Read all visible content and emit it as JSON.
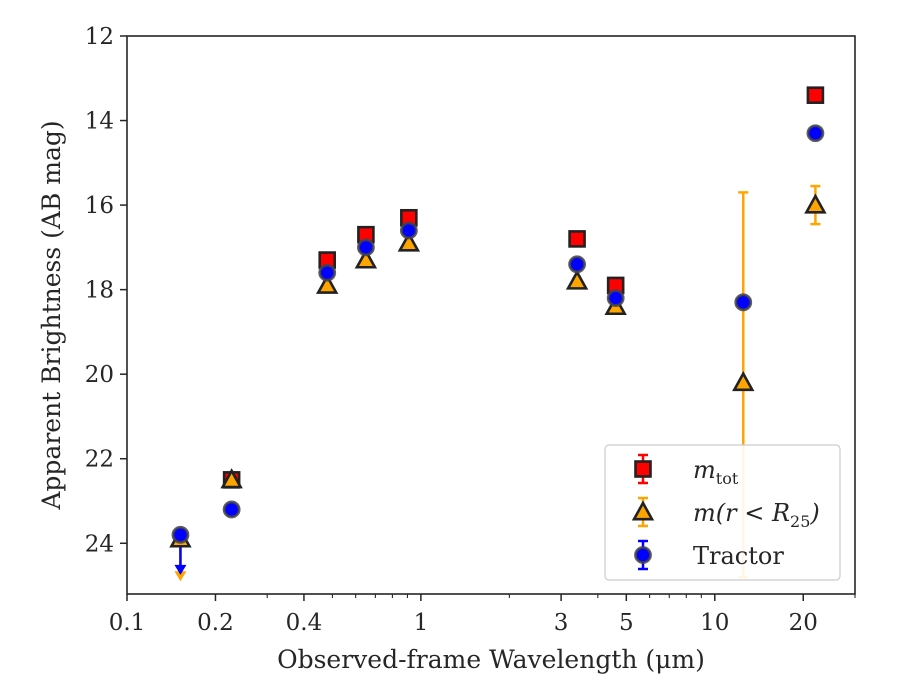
{
  "chart_data": {
    "type": "scatter",
    "xlabel": "Observed-frame Wavelength (μm)",
    "ylabel": "Apparent Brightness (AB mag)",
    "x_scale": "log",
    "xlim": [
      0.1,
      30
    ],
    "ylim": [
      25.2,
      12
    ],
    "y_inverted": true,
    "grid": false,
    "legend_position": "lower-right",
    "x_ticks": [
      {
        "value": 0.1,
        "label": "0.1"
      },
      {
        "value": 0.2,
        "label": "0.2"
      },
      {
        "value": 0.4,
        "label": "0.4"
      },
      {
        "value": 1,
        "label": "1"
      },
      {
        "value": 3,
        "label": "3"
      },
      {
        "value": 5,
        "label": "5"
      },
      {
        "value": 10,
        "label": "10"
      },
      {
        "value": 20,
        "label": "20"
      }
    ],
    "y_ticks": [
      {
        "value": 12,
        "label": "12"
      },
      {
        "value": 14,
        "label": "14"
      },
      {
        "value": 16,
        "label": "16"
      },
      {
        "value": 18,
        "label": "18"
      },
      {
        "value": 20,
        "label": "20"
      },
      {
        "value": 22,
        "label": "22"
      },
      {
        "value": 24,
        "label": "24"
      }
    ],
    "series": [
      {
        "name": "m_tot",
        "legend_main": "m",
        "legend_sub": "tot",
        "marker": "square",
        "color": "#ff0000",
        "edge": "#222222",
        "points": [
          {
            "x": 0.227,
            "y": 22.5,
            "err": 0.1
          },
          {
            "x": 0.48,
            "y": 17.3,
            "err": 0.05
          },
          {
            "x": 0.65,
            "y": 16.7,
            "err": 0.05
          },
          {
            "x": 0.91,
            "y": 16.3,
            "err": 0.05
          },
          {
            "x": 3.4,
            "y": 16.8,
            "err": 0.05
          },
          {
            "x": 4.6,
            "y": 17.9,
            "err": 0.05
          },
          {
            "x": 22,
            "y": 13.4,
            "err": 0.05
          }
        ]
      },
      {
        "name": "m(r<R25)",
        "legend_main": "m(r < R",
        "legend_sub": "25",
        "legend_close": ")",
        "marker": "triangle",
        "color": "#ffa500",
        "edge": "#222222",
        "points": [
          {
            "x": 0.152,
            "y": 23.9,
            "upper_limit": true,
            "arrow_to": 24.85
          },
          {
            "x": 0.227,
            "y": 22.5,
            "err": 0.1
          },
          {
            "x": 0.48,
            "y": 17.9,
            "err": 0.05
          },
          {
            "x": 0.65,
            "y": 17.3,
            "err": 0.05
          },
          {
            "x": 0.91,
            "y": 16.9,
            "err": 0.05
          },
          {
            "x": 3.4,
            "y": 17.8,
            "err": 0.05
          },
          {
            "x": 4.6,
            "y": 18.4,
            "err": 0.05
          },
          {
            "x": 12.5,
            "y": 20.2,
            "err_lo": 4.5,
            "err_hi": 4.6
          },
          {
            "x": 22,
            "y": 16.0,
            "err": 0.45
          }
        ]
      },
      {
        "name": "Tractor",
        "legend_main": "Tractor",
        "marker": "circle",
        "color": "#0000ff",
        "edge": "#444444",
        "points": [
          {
            "x": 0.152,
            "y": 23.8,
            "upper_limit": true,
            "arrow_to": 24.7
          },
          {
            "x": 0.227,
            "y": 23.2,
            "err": 0.05
          },
          {
            "x": 0.48,
            "y": 17.6,
            "err": 0.05
          },
          {
            "x": 0.65,
            "y": 17.0,
            "err": 0.05
          },
          {
            "x": 0.91,
            "y": 16.6,
            "err": 0.05
          },
          {
            "x": 3.4,
            "y": 17.4,
            "err": 0.05
          },
          {
            "x": 4.6,
            "y": 18.2,
            "err": 0.05
          },
          {
            "x": 12.5,
            "y": 18.3,
            "err": 0.05
          },
          {
            "x": 22,
            "y": 14.3,
            "err": 0.05
          }
        ]
      }
    ]
  }
}
